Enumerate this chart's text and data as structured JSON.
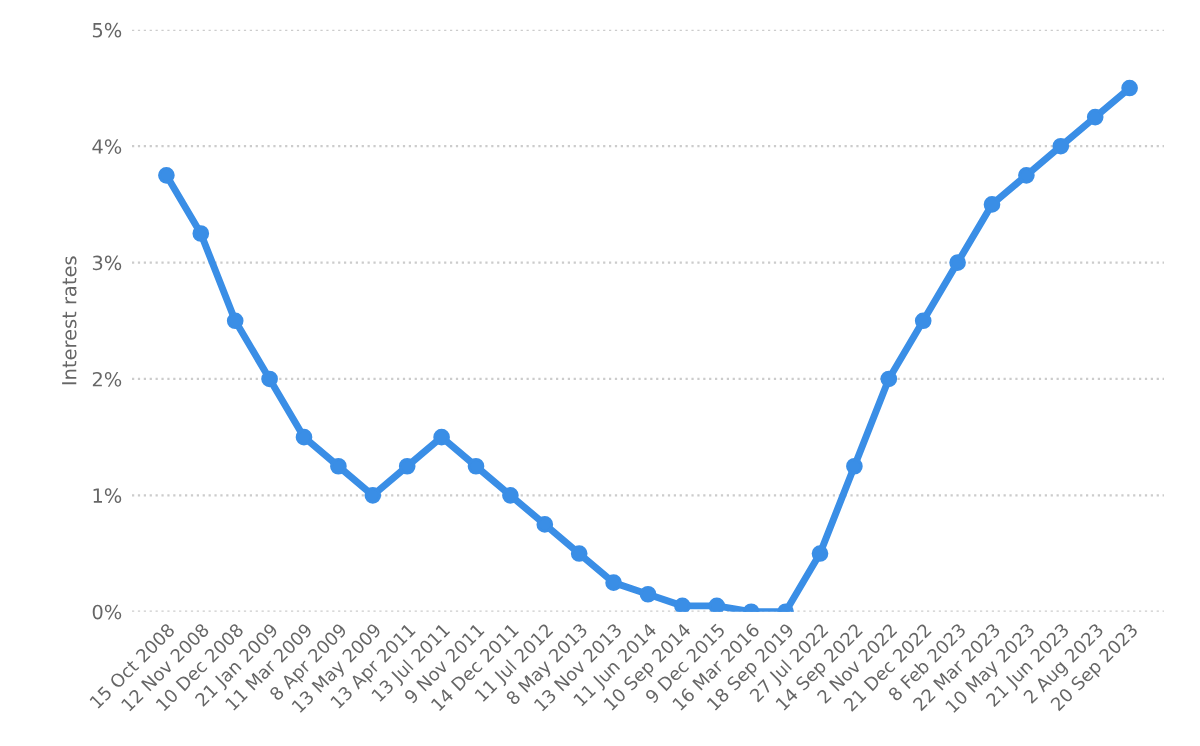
{
  "chart_data": {
    "type": "line",
    "ylabel": "Interest rates",
    "categories": [
      "15 Oct 2008",
      "12 Nov 2008",
      "10 Dec 2008",
      "21 Jan 2009",
      "11 Mar 2009",
      "8 Apr 2009",
      "13 May 2009",
      "13 Apr 2011",
      "13 Jul 2011",
      "9 Nov 2011",
      "14 Dec 2011",
      "11 Jul 2012",
      "8 May 2013",
      "13 Nov 2013",
      "11 Jun 2014",
      "10 Sep 2014",
      "9 Dec 2015",
      "16 Mar 2016",
      "18 Sep 2019",
      "27 Jul 2022",
      "14 Sep 2022",
      "2 Nov 2022",
      "21 Dec 2022",
      "8 Feb 2023",
      "22 Mar 2023",
      "10 May 2023",
      "21 Jun 2023",
      "2 Aug 2023",
      "20 Sep 2023"
    ],
    "series": [
      {
        "color": "#3a8ee6",
        "values": [
          3.75,
          3.25,
          2.5,
          2.0,
          1.5,
          1.25,
          1.0,
          1.25,
          1.5,
          1.25,
          1.0,
          0.75,
          0.5,
          0.25,
          0.15,
          0.05,
          0.05,
          0,
          0,
          0.5,
          1.25,
          2.0,
          2.5,
          3.0,
          3.5,
          3.75,
          4.0,
          4.25,
          4.5
        ]
      }
    ],
    "ylim": [
      0,
      5
    ],
    "yticks": [
      {
        "value": 0,
        "label": "0%"
      },
      {
        "value": 1,
        "label": "1%"
      },
      {
        "value": 2,
        "label": "2%"
      },
      {
        "value": 3,
        "label": "3%"
      },
      {
        "value": 4,
        "label": "4%"
      },
      {
        "value": 5,
        "label": "5%"
      }
    ],
    "grid": "y",
    "marker": "circle",
    "line_style": "solid",
    "legend": false
  }
}
